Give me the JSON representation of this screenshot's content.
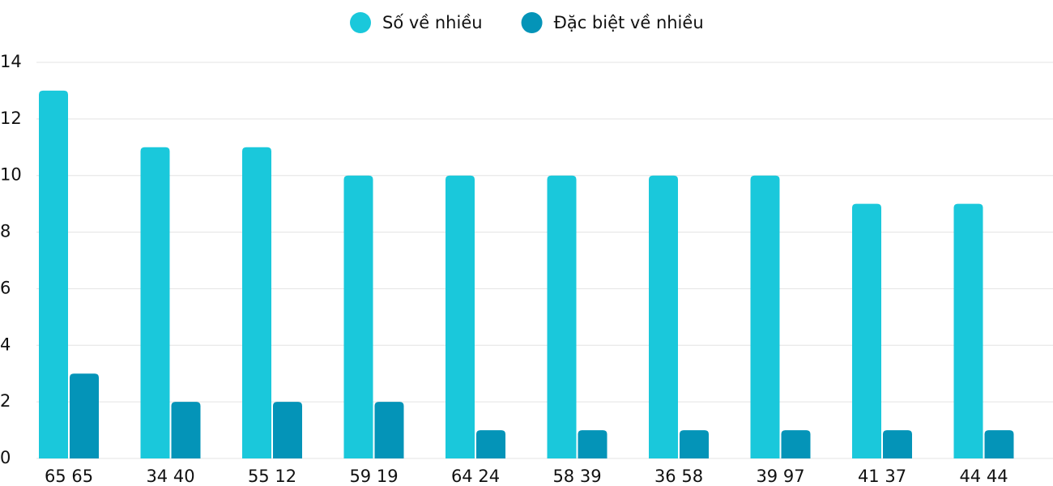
{
  "chart_data": {
    "type": "bar",
    "categories": [
      "65 65",
      "34 40",
      "55 12",
      "59 19",
      "64 24",
      "58 39",
      "36 58",
      "39 97",
      "41 37",
      "44 44"
    ],
    "series": [
      {
        "name": "Số về nhiều",
        "color": "#1ac8db",
        "values": [
          13,
          11,
          11,
          10,
          10,
          10,
          10,
          10,
          9,
          9
        ]
      },
      {
        "name": "Đặc biệt về nhiều",
        "color": "#0494b8",
        "values": [
          3,
          2,
          2,
          2,
          1,
          1,
          1,
          1,
          1,
          1
        ]
      }
    ],
    "ylim": [
      0,
      14
    ],
    "yticks": [
      0,
      2,
      4,
      6,
      8,
      10,
      12,
      14
    ],
    "grid": true,
    "legend": "top"
  }
}
